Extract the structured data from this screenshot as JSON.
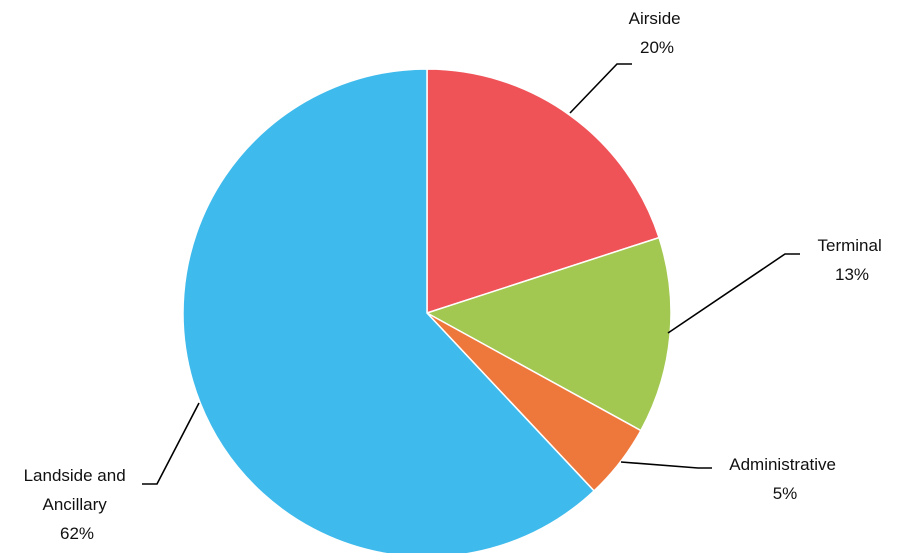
{
  "chart_data": {
    "type": "pie",
    "title": "",
    "start_angle_deg": 0,
    "direction": "clockwise",
    "legend": "none",
    "slices": [
      {
        "name": "Airside",
        "value": 20,
        "label": "20%",
        "color": "#EF5358"
      },
      {
        "name": "Terminal",
        "value": 13,
        "label": "13%",
        "color": "#A2C851"
      },
      {
        "name": "Administrative",
        "value": 5,
        "label": "5%",
        "color": "#EE773C"
      },
      {
        "name": "Landside and Ancillary",
        "value": 62,
        "label": "62%",
        "color": "#3FBAEC"
      }
    ],
    "label_lines": {
      "airside": [
        "Airside",
        "20%"
      ],
      "terminal": [
        "Terminal",
        "13%"
      ],
      "administrative": [
        "Administrative",
        "5%"
      ],
      "landside": [
        "Landside and",
        "Ancillary",
        "62%"
      ]
    }
  }
}
